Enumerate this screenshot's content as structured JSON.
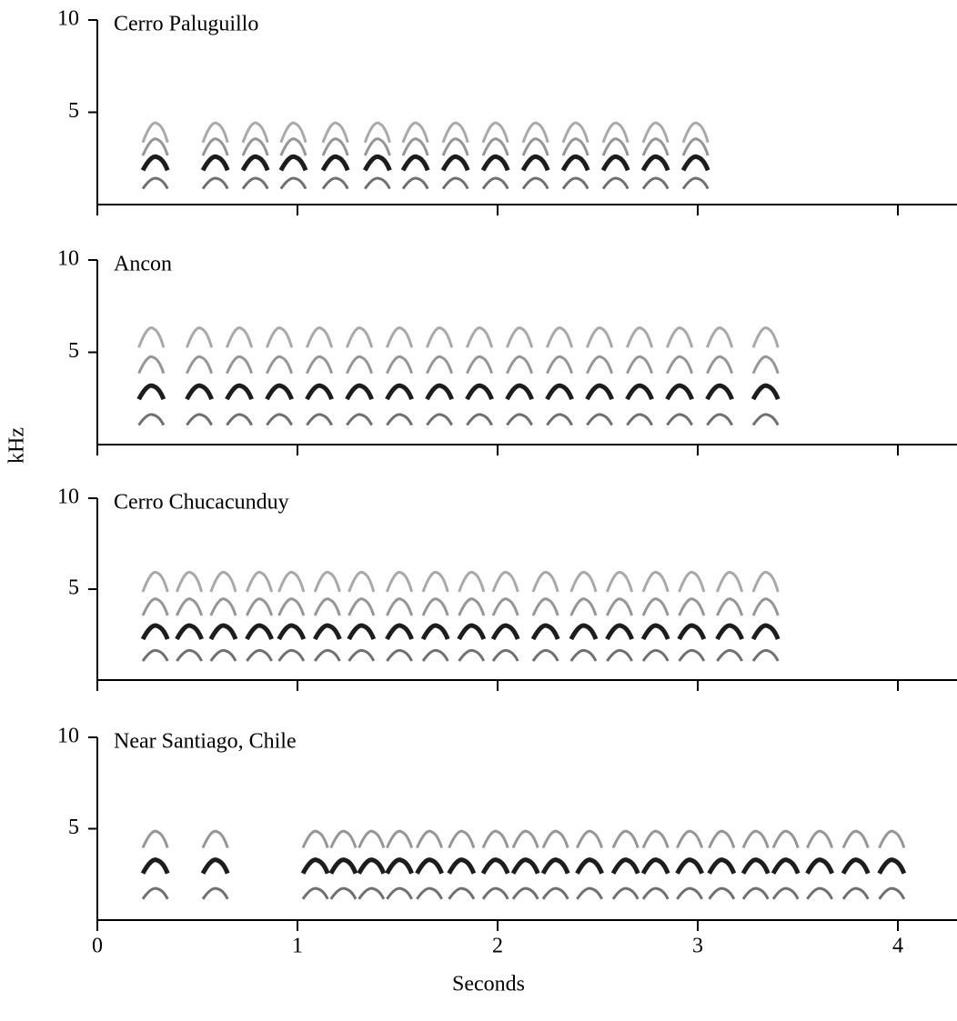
{
  "ylabel": "kHz",
  "xlabel": "Seconds",
  "chart_data": [
    {
      "type": "spectrogram",
      "title": "Cerro Paluguillo",
      "xlim": [
        0,
        4.3
      ],
      "ylim": [
        0,
        10
      ],
      "yticks": [
        5,
        10
      ],
      "xticks": [
        0,
        1,
        2,
        3,
        4
      ],
      "xtick_labels": false,
      "color": "#111111",
      "x": [
        0.3,
        0.6,
        0.8,
        0.99,
        1.2,
        1.41,
        1.6,
        1.8,
        2.0,
        2.2,
        2.4,
        2.6,
        2.8,
        3.0
      ],
      "harmonics": [
        1.2,
        2.3,
        3.2,
        4.0
      ]
    },
    {
      "type": "spectrogram",
      "title": "Ancon",
      "xlim": [
        0,
        4.3
      ],
      "ylim": [
        0,
        10
      ],
      "yticks": [
        5,
        10
      ],
      "xticks": [
        0,
        1,
        2,
        3,
        4
      ],
      "xtick_labels": false,
      "color": "#111111",
      "x": [
        0.28,
        0.52,
        0.72,
        0.92,
        1.12,
        1.32,
        1.52,
        1.72,
        1.92,
        2.12,
        2.32,
        2.52,
        2.72,
        2.92,
        3.12,
        3.35
      ],
      "harmonics": [
        1.4,
        2.9,
        4.4,
        5.9
      ]
    },
    {
      "type": "spectrogram",
      "title": "Cerro Chucacunduy",
      "xlim": [
        0,
        4.3
      ],
      "ylim": [
        0,
        10
      ],
      "yticks": [
        5,
        10
      ],
      "xticks": [
        0,
        1,
        2,
        3,
        4
      ],
      "xtick_labels": false,
      "color": "#111111",
      "x": [
        0.3,
        0.47,
        0.64,
        0.82,
        0.98,
        1.16,
        1.33,
        1.52,
        1.7,
        1.88,
        2.05,
        2.25,
        2.44,
        2.62,
        2.8,
        2.98,
        3.17,
        3.35
      ],
      "harmonics": [
        1.4,
        2.7,
        4.1,
        5.5
      ]
    },
    {
      "type": "spectrogram",
      "title": "Near Santiago, Chile",
      "xlim": [
        0,
        4.3
      ],
      "ylim": [
        0,
        10
      ],
      "yticks": [
        5,
        10
      ],
      "xticks": [
        0,
        1,
        2,
        3,
        4
      ],
      "xtick_labels": true,
      "color": "#111111",
      "x": [
        0.3,
        0.6,
        1.1,
        1.24,
        1.38,
        1.52,
        1.67,
        1.83,
        2.0,
        2.15,
        2.3,
        2.47,
        2.65,
        2.8,
        2.97,
        3.13,
        3.3,
        3.45,
        3.62,
        3.8,
        3.98
      ],
      "harmonics": [
        1.5,
        3.0,
        4.5
      ]
    }
  ]
}
